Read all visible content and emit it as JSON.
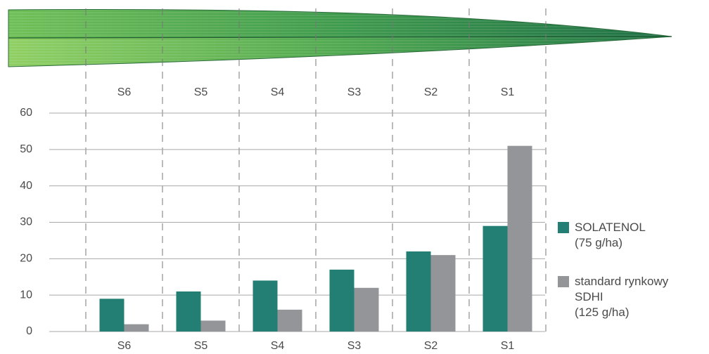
{
  "chart_data": {
    "type": "bar",
    "categories": [
      "S6",
      "S5",
      "S4",
      "S3",
      "S2",
      "S1"
    ],
    "series": [
      {
        "name": "SOLATENOL\n(75 g/ha)",
        "color": "#237f73",
        "values": [
          9,
          11,
          14,
          17,
          22,
          29
        ]
      },
      {
        "name": "standard rynkowy\nSDHI\n(125 g/ha)",
        "color": "#939598",
        "values": [
          2,
          3,
          6,
          12,
          21,
          51
        ]
      }
    ],
    "ylim": [
      0,
      60
    ],
    "yticks": [
      0,
      10,
      20,
      30,
      40,
      50,
      60
    ],
    "grid": true
  }
}
